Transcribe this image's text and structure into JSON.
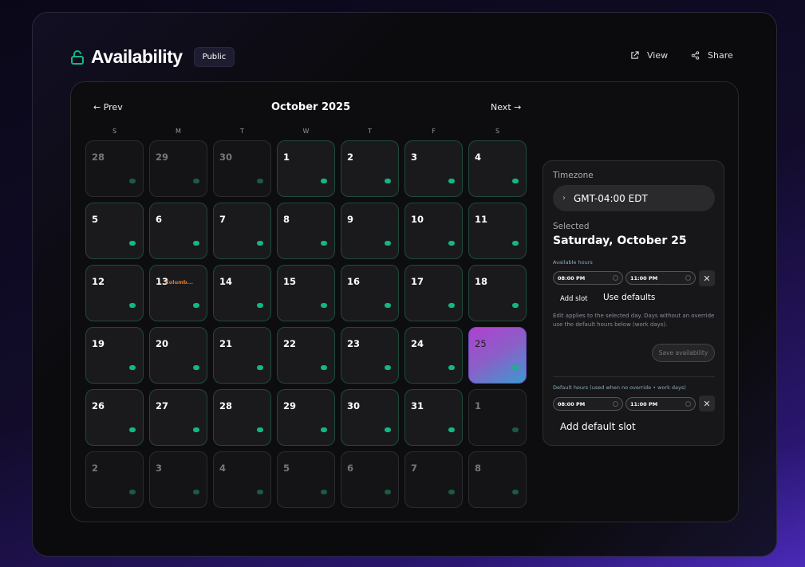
{
  "header": {
    "title": "Availability",
    "badge": "Public",
    "view": "View",
    "share": "Share",
    "lock_icon": "unlock-icon"
  },
  "calendar": {
    "prev": "← Prev",
    "next": "Next →",
    "month": "October 2025",
    "weekdays": [
      "S",
      "M",
      "T",
      "W",
      "T",
      "F",
      "S"
    ],
    "days": [
      {
        "n": "28",
        "muted": true
      },
      {
        "n": "29",
        "muted": true
      },
      {
        "n": "30",
        "muted": true
      },
      {
        "n": "1"
      },
      {
        "n": "2"
      },
      {
        "n": "3"
      },
      {
        "n": "4"
      },
      {
        "n": "5"
      },
      {
        "n": "6"
      },
      {
        "n": "7"
      },
      {
        "n": "8"
      },
      {
        "n": "9"
      },
      {
        "n": "10"
      },
      {
        "n": "11"
      },
      {
        "n": "12"
      },
      {
        "n": "13",
        "label": "Columb..."
      },
      {
        "n": "14"
      },
      {
        "n": "15"
      },
      {
        "n": "16"
      },
      {
        "n": "17"
      },
      {
        "n": "18"
      },
      {
        "n": "19"
      },
      {
        "n": "20"
      },
      {
        "n": "21"
      },
      {
        "n": "22"
      },
      {
        "n": "23"
      },
      {
        "n": "24"
      },
      {
        "n": "25",
        "selected": true
      },
      {
        "n": "26"
      },
      {
        "n": "27"
      },
      {
        "n": "28"
      },
      {
        "n": "29"
      },
      {
        "n": "30"
      },
      {
        "n": "31"
      },
      {
        "n": "1",
        "muted": true
      },
      {
        "n": "2",
        "muted": true
      },
      {
        "n": "3",
        "muted": true
      },
      {
        "n": "4",
        "muted": true
      },
      {
        "n": "5",
        "muted": true
      },
      {
        "n": "6",
        "muted": true
      },
      {
        "n": "7",
        "muted": true
      },
      {
        "n": "8",
        "muted": true
      }
    ]
  },
  "side": {
    "timezone_label": "Timezone",
    "timezone": "GMT-04:00 EDT",
    "selected_label": "Selected",
    "selected_date": "Saturday, October 25",
    "available_label": "Available hours",
    "slot": {
      "start": "08:00 PM",
      "end": "11:00 PM"
    },
    "add_slot": "Add slot",
    "use_defaults": "Use defaults",
    "note": "Edit applies to the selected day. Days without an override use the default hours below (work days).",
    "save": "Save availability",
    "default_label": "Default hours (used when no override • work days)",
    "default_slot": {
      "start": "08:00 PM",
      "end": "11:00 PM"
    },
    "add_default": "Add default slot"
  },
  "colors": {
    "accent": "#10b981",
    "holiday": "#e07a2a"
  }
}
